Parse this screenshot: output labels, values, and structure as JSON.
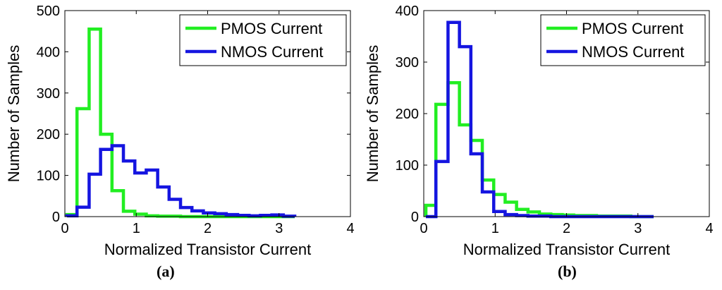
{
  "chart_data": [
    {
      "type": "line",
      "panel_label": "(a)",
      "xlabel": "Normalized Transistor Current",
      "ylabel": "Number of Samples",
      "xlim": [
        0,
        4
      ],
      "ylim": [
        0,
        500
      ],
      "xticks": [
        0,
        1,
        2,
        3,
        4
      ],
      "yticks": [
        0,
        100,
        200,
        300,
        400,
        500
      ],
      "bin_edges": [
        0.03,
        0.17,
        0.34,
        0.5,
        0.66,
        0.82,
        0.98,
        1.14,
        1.3,
        1.46,
        1.62,
        1.78,
        1.94,
        2.1,
        2.26,
        2.42,
        2.58,
        2.74,
        2.9,
        3.06,
        3.22
      ],
      "legend_position": "top-right",
      "grid": false,
      "series": [
        {
          "name": "PMOS Current",
          "color": "#22ee22",
          "values": [
            5,
            262,
            455,
            200,
            63,
            13,
            6,
            2,
            1,
            1,
            0,
            0,
            0,
            0,
            0,
            0,
            0,
            0,
            0,
            0
          ]
        },
        {
          "name": "NMOS Current",
          "color": "#1515e0",
          "values": [
            2,
            23,
            103,
            163,
            172,
            135,
            106,
            113,
            72,
            42,
            22,
            14,
            9,
            7,
            5,
            3,
            2,
            3,
            4,
            1
          ]
        }
      ]
    },
    {
      "type": "line",
      "panel_label": "(b)",
      "xlabel": "Normalized Transistor Current",
      "ylabel": "Number of Samples",
      "xlim": [
        0,
        4
      ],
      "ylim": [
        0,
        400
      ],
      "xticks": [
        0,
        1,
        2,
        3,
        4
      ],
      "yticks": [
        0,
        100,
        200,
        300,
        400
      ],
      "bin_edges": [
        0.03,
        0.17,
        0.34,
        0.5,
        0.66,
        0.82,
        0.98,
        1.14,
        1.3,
        1.46,
        1.62,
        1.78,
        1.94,
        2.1,
        2.26,
        2.42,
        2.58,
        2.74,
        2.9,
        3.06,
        3.22
      ],
      "legend_position": "top-right",
      "grid": false,
      "series": [
        {
          "name": "PMOS Current",
          "color": "#22ee22",
          "values": [
            22,
            218,
            260,
            178,
            148,
            71,
            43,
            28,
            14,
            9,
            5,
            4,
            3,
            2,
            2,
            1,
            1,
            1,
            0,
            0
          ]
        },
        {
          "name": "NMOS Current",
          "color": "#1515e0",
          "values": [
            0,
            107,
            377,
            330,
            122,
            48,
            10,
            4,
            2,
            1,
            1,
            0,
            0,
            0,
            0,
            0,
            0,
            0,
            0,
            0
          ]
        }
      ]
    }
  ]
}
